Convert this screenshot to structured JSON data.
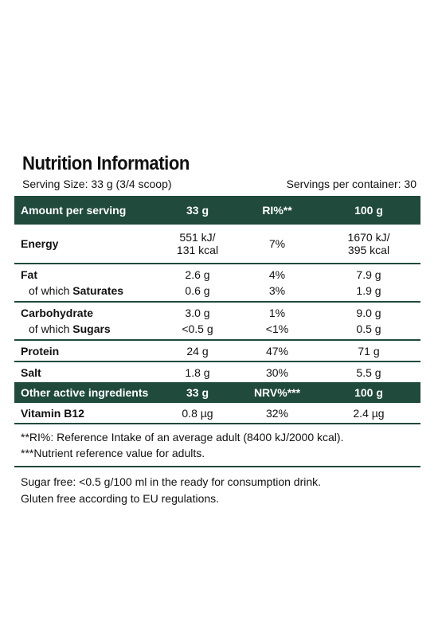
{
  "title": "Nutrition Information",
  "serving_size": "Serving Size: 33 g (3/4 scoop)",
  "servings_per_container": "Servings per container: 30",
  "header": {
    "col1": "Amount per serving",
    "col2": "33 g",
    "col3": "RI%**",
    "col4": "100 g"
  },
  "rows": {
    "energy": {
      "label": "Energy",
      "serving_kj": "551 kJ/",
      "serving_kcal": "131 kcal",
      "ri": "7%",
      "per100_kj": "1670 kJ/",
      "per100_kcal": "395 kcal"
    },
    "fat": {
      "label": "Fat",
      "serving": "2.6 g",
      "ri": "4%",
      "per100": "7.9 g"
    },
    "saturates": {
      "prefix": "of which ",
      "label": "Saturates",
      "serving": "0.6 g",
      "ri": "3%",
      "per100": "1.9 g"
    },
    "carbohydrate": {
      "label": "Carbohydrate",
      "serving": "3.0 g",
      "ri": "1%",
      "per100": "9.0 g"
    },
    "sugars": {
      "prefix": "of which ",
      "label": "Sugars",
      "serving": "<0.5 g",
      "ri": "<1%",
      "per100": "0.5 g"
    },
    "protein": {
      "label": "Protein",
      "serving": "24 g",
      "ri": "47%",
      "per100": "71 g"
    },
    "salt": {
      "label": "Salt",
      "serving": "1.8 g",
      "ri": "30%",
      "per100": "5.5 g"
    }
  },
  "header2": {
    "col1": "Other active ingredients",
    "col2": "33 g",
    "col3": "NRV%***",
    "col4": "100 g"
  },
  "vitamin_b12": {
    "label": "Vitamin B12",
    "serving": "0.8 µg",
    "nrv": "32%",
    "per100": "2.4 µg"
  },
  "notes": [
    "**RI%: Reference Intake of an average adult (8400 kJ/2000 kcal).",
    "***Nutrient reference value for adults."
  ],
  "footer": [
    "Sugar free: <0.5 g/100 ml in the ready for consumption drink.",
    "Gluten free according to EU regulations."
  ],
  "colors": {
    "accent": "#1f4a3c"
  }
}
